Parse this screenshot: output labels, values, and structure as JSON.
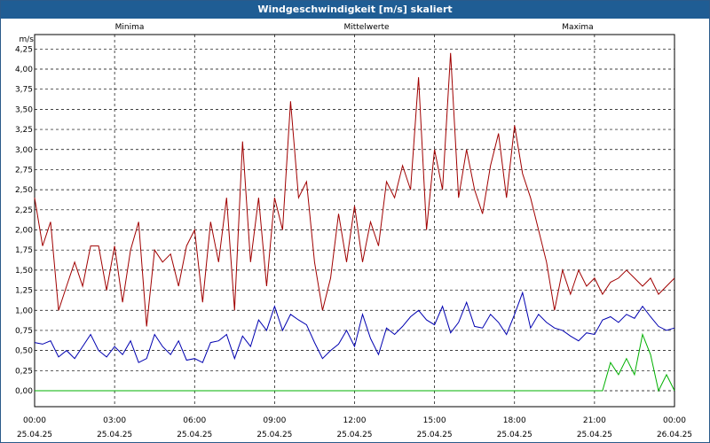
{
  "window": {
    "title": "Windgeschwindigkeit [m/s] skaliert"
  },
  "colors": {
    "minima": "#00b000",
    "mittelwerte": "#0000b0",
    "maxima": "#a00000",
    "grid": "#000000",
    "title_bar": "#1f5d94"
  },
  "chart_data": {
    "type": "line",
    "title": "Windgeschwindigkeit [m/s] skaliert",
    "unit_label": "m/s",
    "xlabel": "",
    "ylabel": "",
    "ylim": [
      0,
      4.35
    ],
    "xlim_hours": [
      0,
      24
    ],
    "grid": true,
    "legend_position": "top",
    "y_ticks": [
      "0,00",
      "0,25",
      "0,50",
      "0,75",
      "1,00",
      "1,25",
      "1,50",
      "1,75",
      "2,00",
      "2,25",
      "2,50",
      "2,75",
      "3,00",
      "3,25",
      "3,50",
      "3,75",
      "4,00",
      "4,25"
    ],
    "x_ticks": [
      {
        "time": "00:00",
        "date": "25.04.25"
      },
      {
        "time": "03:00",
        "date": "25.04.25"
      },
      {
        "time": "06:00",
        "date": "25.04.25"
      },
      {
        "time": "09:00",
        "date": "25.04.25"
      },
      {
        "time": "12:00",
        "date": "25.04.25"
      },
      {
        "time": "15:00",
        "date": "25.04.25"
      },
      {
        "time": "18:00",
        "date": "25.04.25"
      },
      {
        "time": "21:00",
        "date": "25.04.25"
      },
      {
        "time": "00:00",
        "date": "26.04.25"
      }
    ],
    "series": [
      {
        "name": "Minima",
        "color": "#00b000",
        "x": [
          0,
          1,
          2,
          3,
          4,
          5,
          6,
          7,
          8,
          9,
          10,
          11,
          12,
          13,
          14,
          15,
          16,
          17,
          18,
          19,
          20,
          21,
          21.3,
          21.6,
          21.9,
          22.2,
          22.5,
          22.8,
          23.1,
          23.4,
          23.7,
          24
        ],
        "y": [
          0,
          0,
          0,
          0,
          0,
          0,
          0,
          0,
          0,
          0,
          0,
          0,
          0,
          0,
          0,
          0,
          0,
          0,
          0,
          0,
          0,
          0,
          0,
          0.35,
          0.2,
          0.4,
          0.2,
          0.7,
          0.45,
          0,
          0.2,
          0
        ]
      },
      {
        "name": "Mittelwerte",
        "color": "#0000b0",
        "x": [
          0,
          0.3,
          0.6,
          0.9,
          1.2,
          1.5,
          1.8,
          2.1,
          2.4,
          2.7,
          3,
          3.3,
          3.6,
          3.9,
          4.2,
          4.5,
          4.8,
          5.1,
          5.4,
          5.7,
          6,
          6.3,
          6.6,
          6.9,
          7.2,
          7.5,
          7.8,
          8.1,
          8.4,
          8.7,
          9,
          9.3,
          9.6,
          9.9,
          10.2,
          10.5,
          10.8,
          11.1,
          11.4,
          11.7,
          12,
          12.3,
          12.6,
          12.9,
          13.2,
          13.5,
          13.8,
          14.1,
          14.4,
          14.7,
          15,
          15.3,
          15.6,
          15.9,
          16.2,
          16.5,
          16.8,
          17.1,
          17.4,
          17.7,
          18,
          18.3,
          18.6,
          18.9,
          19.2,
          19.5,
          19.8,
          20.1,
          20.4,
          20.7,
          21,
          21.3,
          21.6,
          21.9,
          22.2,
          22.5,
          22.8,
          23.1,
          23.4,
          23.7,
          24
        ],
        "y": [
          0.6,
          0.58,
          0.62,
          0.42,
          0.5,
          0.4,
          0.55,
          0.7,
          0.5,
          0.42,
          0.55,
          0.45,
          0.62,
          0.35,
          0.4,
          0.7,
          0.55,
          0.45,
          0.62,
          0.38,
          0.4,
          0.35,
          0.6,
          0.62,
          0.7,
          0.4,
          0.68,
          0.55,
          0.88,
          0.75,
          1.05,
          0.75,
          0.95,
          0.88,
          0.82,
          0.6,
          0.4,
          0.5,
          0.58,
          0.75,
          0.55,
          0.95,
          0.65,
          0.45,
          0.78,
          0.7,
          0.8,
          0.92,
          1.0,
          0.88,
          0.82,
          1.05,
          0.72,
          0.85,
          1.1,
          0.8,
          0.78,
          0.95,
          0.85,
          0.7,
          0.95,
          1.22,
          0.78,
          0.95,
          0.85,
          0.78,
          0.75,
          0.68,
          0.62,
          0.72,
          0.7,
          0.88,
          0.92,
          0.85,
          0.95,
          0.9,
          1.05,
          0.92,
          0.8,
          0.75,
          0.78
        ]
      },
      {
        "name": "Maxima",
        "color": "#a00000",
        "x": [
          0,
          0.3,
          0.6,
          0.9,
          1.2,
          1.5,
          1.8,
          2.1,
          2.4,
          2.7,
          3,
          3.3,
          3.6,
          3.9,
          4.2,
          4.5,
          4.8,
          5.1,
          5.4,
          5.7,
          6,
          6.3,
          6.6,
          6.9,
          7.2,
          7.5,
          7.8,
          8.1,
          8.4,
          8.7,
          9,
          9.3,
          9.6,
          9.9,
          10.2,
          10.5,
          10.8,
          11.1,
          11.4,
          11.7,
          12,
          12.3,
          12.6,
          12.9,
          13.2,
          13.5,
          13.8,
          14.1,
          14.4,
          14.7,
          15,
          15.3,
          15.6,
          15.9,
          16.2,
          16.5,
          16.8,
          17.1,
          17.4,
          17.7,
          18,
          18.3,
          18.6,
          18.9,
          19.2,
          19.5,
          19.8,
          20.1,
          20.4,
          20.7,
          21,
          21.3,
          21.6,
          21.9,
          22.2,
          22.5,
          22.8,
          23.1,
          23.4,
          23.7,
          24
        ],
        "y": [
          2.4,
          1.8,
          2.1,
          1.0,
          1.3,
          1.6,
          1.3,
          1.8,
          1.8,
          1.25,
          1.8,
          1.1,
          1.75,
          2.1,
          0.8,
          1.75,
          1.6,
          1.7,
          1.3,
          1.8,
          2.0,
          1.1,
          2.1,
          1.6,
          2.4,
          1.0,
          3.1,
          1.6,
          2.4,
          1.3,
          2.4,
          2.0,
          3.6,
          2.4,
          2.6,
          1.6,
          1.0,
          1.4,
          2.2,
          1.6,
          2.3,
          1.6,
          2.1,
          1.8,
          2.6,
          2.4,
          2.8,
          2.5,
          3.9,
          2.0,
          3.0,
          2.5,
          4.2,
          2.4,
          3.0,
          2.5,
          2.2,
          2.8,
          3.2,
          2.4,
          3.3,
          2.7,
          2.4,
          2.0,
          1.6,
          1.0,
          1.5,
          1.2,
          1.5,
          1.3,
          1.4,
          1.2,
          1.35,
          1.4,
          1.5,
          1.4,
          1.3,
          1.4,
          1.2,
          1.3,
          1.4
        ]
      }
    ]
  }
}
